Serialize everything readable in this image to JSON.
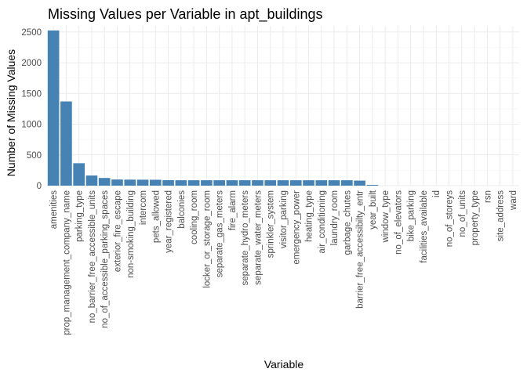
{
  "chart_data": {
    "type": "bar",
    "title": "Missing Values per Variable in apt_buildings",
    "xlabel": "Variable",
    "ylabel": "Number of Missing Values",
    "ylim": [
      0,
      2600
    ],
    "yticks": [
      0,
      500,
      1000,
      1500,
      2000,
      2500
    ],
    "grid": true,
    "legend": "none",
    "bar_color": "#4682B4",
    "categories": [
      "amenities",
      "prop_management_company_name",
      "parking_type",
      "no_barrier_free_accessible_units",
      "no_of_accessible_parking_spaces",
      "exterior_fire_escape",
      "non-smoking_building",
      "intercom",
      "pets_allowed",
      "year_registered",
      "balconies",
      "cooling_room",
      "locker_or_storage_room",
      "separate_gas_meters",
      "fire_alarm",
      "separate_hydro_meters",
      "separate_water_meters",
      "sprinkler_system",
      "visitor_parking",
      "emergency_power",
      "heating_type",
      "air_conditioning",
      "laundry_room",
      "garbage_chutes",
      "barrier_free_accessibilty_entr",
      "year_built",
      "window_type",
      "no_of_elevators",
      "bike_parking",
      "facilities_available",
      "id",
      "no_of_storeys",
      "no_of_units",
      "property_type",
      "rsn",
      "site_address",
      "ward"
    ],
    "values": [
      2525,
      1370,
      365,
      165,
      125,
      100,
      98,
      97,
      96,
      89,
      88,
      88,
      88,
      88,
      88,
      88,
      88,
      88,
      88,
      88,
      88,
      88,
      88,
      88,
      82,
      13,
      0,
      0,
      0,
      0,
      0,
      0,
      0,
      0,
      0,
      0,
      0
    ]
  }
}
